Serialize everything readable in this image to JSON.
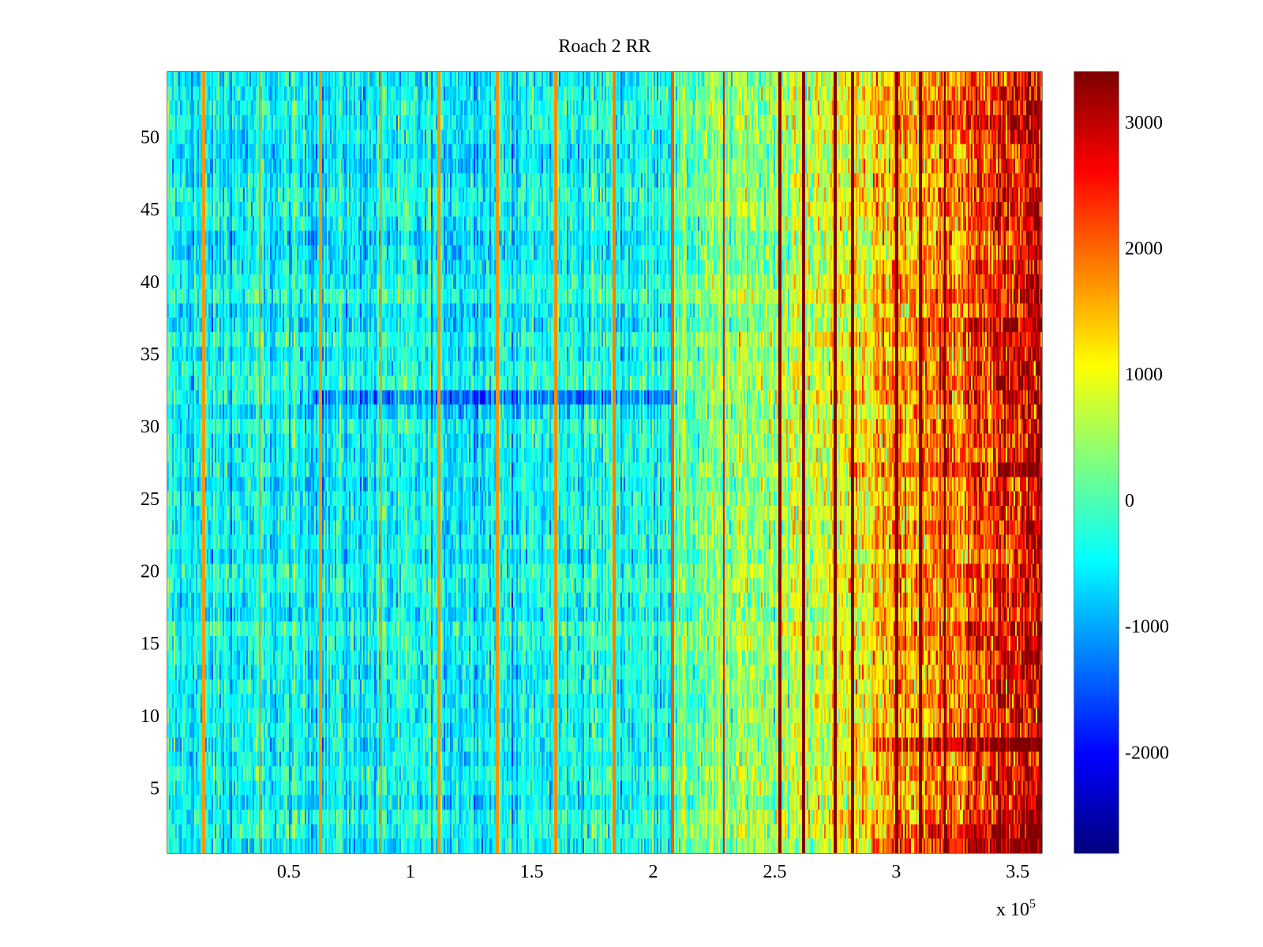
{
  "chart_data": {
    "type": "heatmap",
    "title": "Roach 2 RR",
    "xlabel": "",
    "ylabel": "",
    "x_exponent": {
      "base": "x 10",
      "exponent": "5"
    },
    "xlim": [
      0,
      360000
    ],
    "ylim": [
      0.5,
      54.5
    ],
    "rows": 54,
    "colormap": "jet",
    "clim": [
      -2800,
      3400
    ],
    "x_ticks": [
      {
        "value": 50000,
        "label": "0.5"
      },
      {
        "value": 100000,
        "label": "1"
      },
      {
        "value": 150000,
        "label": "1.5"
      },
      {
        "value": 200000,
        "label": "2"
      },
      {
        "value": 250000,
        "label": "2.5"
      },
      {
        "value": 300000,
        "label": "3"
      },
      {
        "value": 350000,
        "label": "3.5"
      }
    ],
    "y_ticks": [
      {
        "value": 5,
        "label": "5"
      },
      {
        "value": 10,
        "label": "10"
      },
      {
        "value": 15,
        "label": "15"
      },
      {
        "value": 20,
        "label": "20"
      },
      {
        "value": 25,
        "label": "25"
      },
      {
        "value": 30,
        "label": "30"
      },
      {
        "value": 35,
        "label": "35"
      },
      {
        "value": 40,
        "label": "40"
      },
      {
        "value": 45,
        "label": "45"
      },
      {
        "value": 50,
        "label": "50"
      }
    ],
    "colorbar_ticks": [
      {
        "value": -2000,
        "label": "-2000"
      },
      {
        "value": -1000,
        "label": "-1000"
      },
      {
        "value": 0,
        "label": "0"
      },
      {
        "value": 1000,
        "label": "1000"
      },
      {
        "value": 2000,
        "label": "2000"
      },
      {
        "value": 3000,
        "label": "3000"
      }
    ],
    "trend_profile": {
      "x": [
        0,
        50000,
        100000,
        150000,
        200000,
        220000,
        250000,
        280000,
        300000,
        330000,
        360000
      ],
      "value": [
        -500,
        -500,
        -500,
        -450,
        -300,
        200,
        600,
        1000,
        1500,
        2100,
        3000
      ]
    },
    "vertical_streak_x": [
      15000,
      38000,
      63000,
      88000,
      112000,
      136000,
      160000,
      184000,
      208000,
      229000,
      252000,
      262000,
      275000,
      282000,
      300000,
      310000,
      320000
    ],
    "horizontal_bands": [
      {
        "row": 1,
        "value_offset": 700,
        "x_from": 290000
      },
      {
        "row": 2,
        "value_offset": 600,
        "x_from": 300000
      },
      {
        "row": 8,
        "value_offset": 900,
        "x_from": 290000
      },
      {
        "row": 27,
        "value_offset": 500,
        "x_from": 280000
      },
      {
        "row": 32,
        "value_offset": -900,
        "x_from": 60000,
        "x_to": 210000
      },
      {
        "row": 37,
        "value_offset": 500,
        "x_from": 290000
      },
      {
        "row": 51,
        "value_offset": 500,
        "x_from": 300000
      }
    ]
  }
}
